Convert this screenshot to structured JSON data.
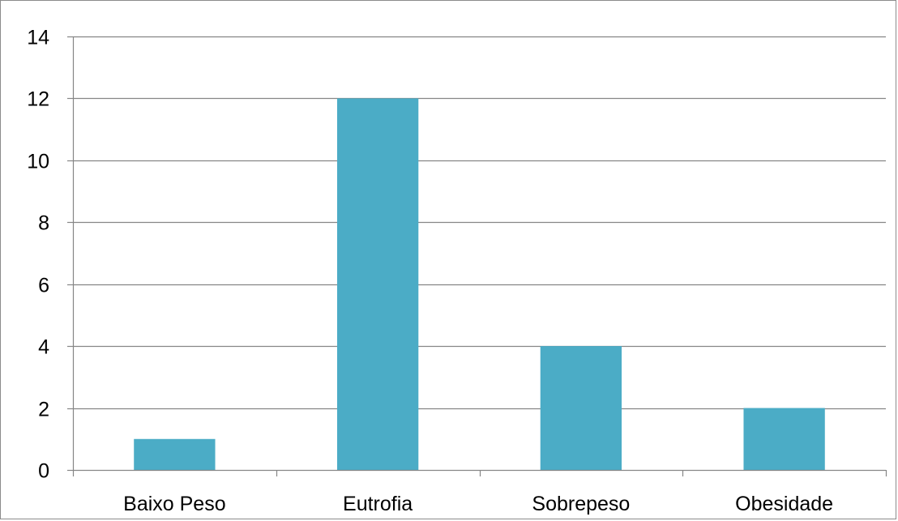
{
  "chart_data": {
    "type": "bar",
    "categories": [
      "Baixo Peso",
      "Eutrofia",
      "Sobrepeso",
      "Obesidade"
    ],
    "values": [
      1,
      12,
      4,
      2
    ],
    "title": "",
    "xlabel": "",
    "ylabel": "",
    "ylim": [
      0,
      14
    ],
    "yticks": [
      0,
      2,
      4,
      6,
      8,
      10,
      12,
      14
    ],
    "ytick_labels": [
      "0",
      "2",
      "4",
      "6",
      "8",
      "10",
      "12",
      "14"
    ],
    "grid": true,
    "legend": "none",
    "colors": {
      "bar": "#4bacc6",
      "grid": "#868686",
      "axis": "#868686",
      "border": "#8c8c8c"
    }
  }
}
